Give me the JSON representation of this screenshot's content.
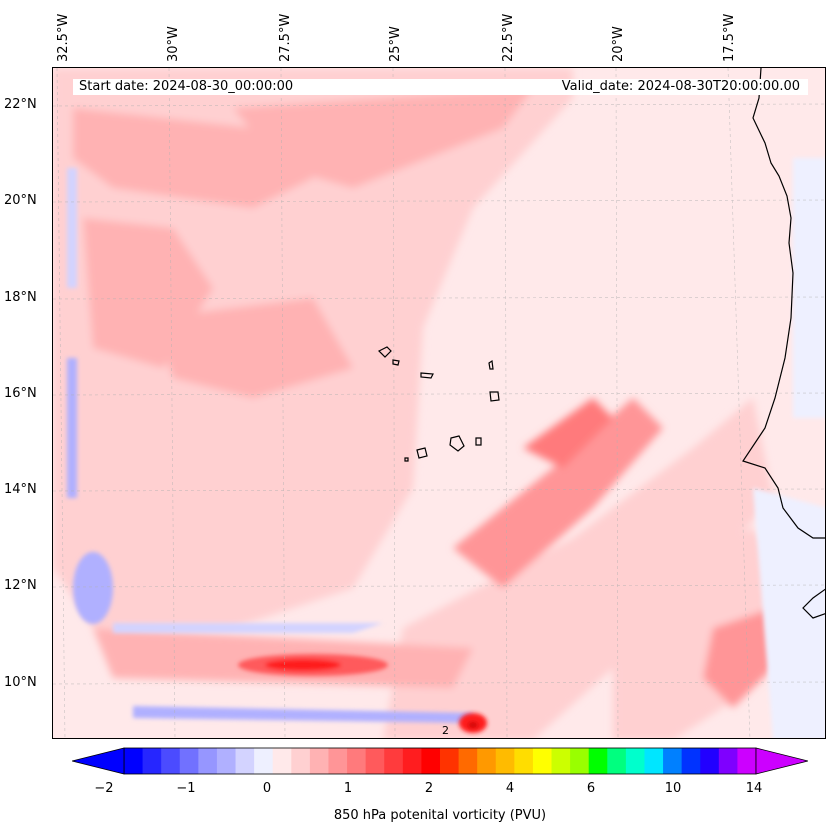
{
  "map": {
    "start_date": "Start date: 2024-08-30_00:00:00",
    "valid_date": "Valid_date: 2024-08-30T20:00:00.00",
    "longitude_labels": [
      "32.5°W",
      "30°W",
      "27.5°W",
      "25°W",
      "22.5°W",
      "20°W",
      "17.5°W"
    ],
    "latitude_labels": [
      "22°N",
      "20°N",
      "18°N",
      "16°N",
      "14°N",
      "12°N",
      "10°N"
    ],
    "contour_marker": "2"
  },
  "colorbar": {
    "label": "850 hPa potenital vorticity (PVU)",
    "tick_labels": [
      "−2",
      "−1",
      "0",
      "1",
      "2",
      "4",
      "6",
      "10",
      "14"
    ],
    "colors": [
      "#0000ff",
      "#2626ff",
      "#4b4bff",
      "#7171ff",
      "#9696ff",
      "#b0b0ff",
      "#d3d3ff",
      "#eef0ff",
      "#ffe9ea",
      "#ffd0d1",
      "#ffb2b3",
      "#ff9597",
      "#ff7a7c",
      "#ff5a5c",
      "#ff3b3d",
      "#ff1d1f",
      "#ff0000",
      "#ff3300",
      "#ff6a00",
      "#ff9900",
      "#ffbb00",
      "#ffdd00",
      "#ffff00",
      "#ccff00",
      "#99ff00",
      "#00ff00",
      "#00ff7f",
      "#00ffcc",
      "#00e6ff",
      "#0080ff",
      "#0033ff",
      "#2200ff",
      "#7f00ff",
      "#cc00ff"
    ],
    "under_color": "#0000ff",
    "over_color": "#cc00ff"
  }
}
